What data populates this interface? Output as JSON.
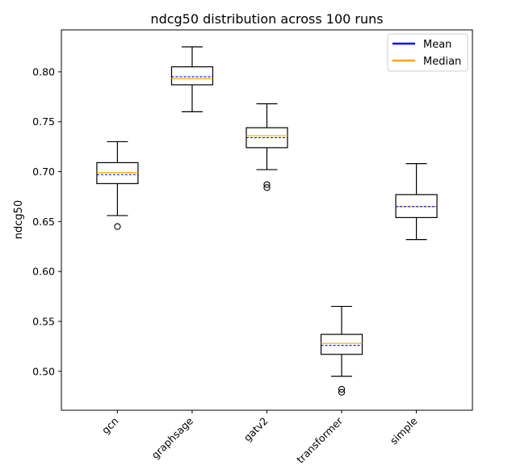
{
  "chart_data": {
    "type": "box",
    "title": "ndcg50 distribution across 100 runs",
    "xlabel": "",
    "ylabel": "ndcg50",
    "ylim": [
      0.461,
      0.842
    ],
    "yticks": [
      0.5,
      0.55,
      0.6,
      0.65,
      0.7,
      0.75,
      0.8
    ],
    "ytick_labels": [
      "0.50",
      "0.55",
      "0.60",
      "0.65",
      "0.70",
      "0.75",
      "0.80"
    ],
    "legend": {
      "position": "top-right",
      "entries": [
        {
          "label": "Mean",
          "color": "#0000ff"
        },
        {
          "label": "Median",
          "color": "#ffa500"
        }
      ]
    },
    "categories": [
      "gcn",
      "graphsage",
      "gatv2",
      "transformer",
      "simple"
    ],
    "boxes": [
      {
        "name": "gcn",
        "whisker_low": 0.656,
        "q1": 0.688,
        "median": 0.699,
        "mean": 0.697,
        "q3": 0.709,
        "whisker_high": 0.73,
        "outliers": [
          0.645
        ]
      },
      {
        "name": "graphsage",
        "whisker_low": 0.76,
        "q1": 0.787,
        "median": 0.793,
        "mean": 0.795,
        "q3": 0.805,
        "whisker_high": 0.825,
        "outliers": []
      },
      {
        "name": "gatv2",
        "whisker_low": 0.702,
        "q1": 0.724,
        "median": 0.736,
        "mean": 0.734,
        "q3": 0.744,
        "whisker_high": 0.768,
        "outliers": [
          0.687,
          0.684
        ]
      },
      {
        "name": "transformer",
        "whisker_low": 0.495,
        "q1": 0.517,
        "median": 0.528,
        "mean": 0.526,
        "q3": 0.537,
        "whisker_high": 0.565,
        "outliers": [
          0.482,
          0.479
        ]
      },
      {
        "name": "simple",
        "whisker_low": 0.632,
        "q1": 0.654,
        "median": 0.665,
        "mean": 0.665,
        "q3": 0.677,
        "whisker_high": 0.708,
        "outliers": []
      }
    ],
    "colors": {
      "mean": "#0000ff",
      "median": "#ffa500",
      "box": "#000000"
    }
  }
}
